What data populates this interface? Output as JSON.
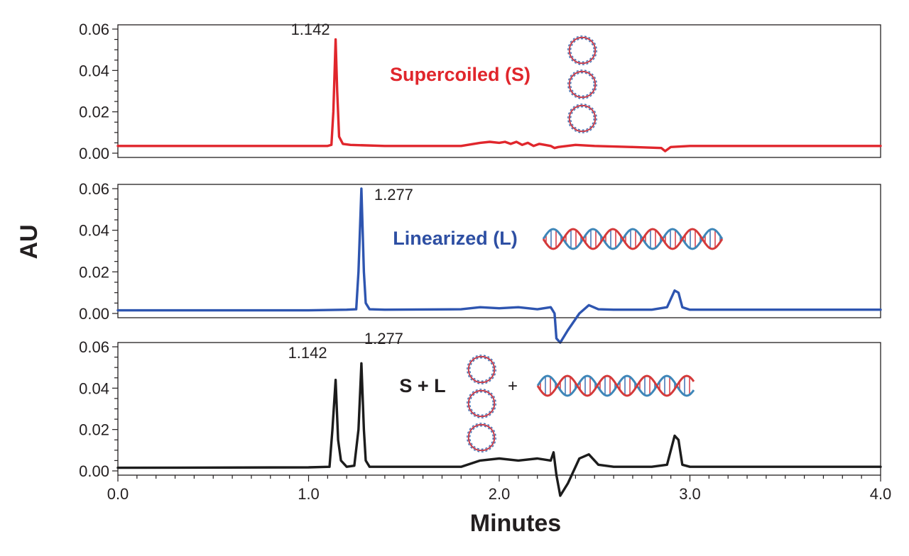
{
  "chart_data": {
    "type": "line",
    "xlabel": "Minutes",
    "ylabel": "AU",
    "xlim": [
      0.0,
      4.0
    ],
    "x_ticks": [
      "0.0",
      "1.0",
      "2.0",
      "3.0",
      "4.0"
    ],
    "ylim": [
      0.0,
      0.06
    ],
    "y_ticks": [
      "0.00",
      "0.02",
      "0.04",
      "0.06"
    ],
    "grid": false,
    "panels": [
      {
        "label": "Supercoiled (S)",
        "label_color": "#e0262c",
        "line_color": "#e0262c",
        "icon": "supercoiled-dna-icon",
        "peaks": [
          {
            "x": 1.142,
            "label": "1.142"
          }
        ],
        "series": {
          "x": [
            0.0,
            1.0,
            1.1,
            1.12,
            1.13,
            1.142,
            1.15,
            1.16,
            1.18,
            1.22,
            1.4,
            1.8,
            1.9,
            1.95,
            2.0,
            2.03,
            2.06,
            2.09,
            2.12,
            2.15,
            2.18,
            2.21,
            2.24,
            2.27,
            2.29,
            2.31,
            2.4,
            2.5,
            2.7,
            2.85,
            2.87,
            2.9,
            3.0,
            3.5,
            4.0
          ],
          "y": [
            0.0035,
            0.0035,
            0.0035,
            0.004,
            0.02,
            0.055,
            0.03,
            0.008,
            0.0045,
            0.004,
            0.0035,
            0.0035,
            0.005,
            0.0055,
            0.005,
            0.0055,
            0.0045,
            0.0055,
            0.004,
            0.005,
            0.0035,
            0.0045,
            0.004,
            0.0035,
            0.0025,
            0.003,
            0.004,
            0.0035,
            0.003,
            0.0025,
            0.001,
            0.003,
            0.0035,
            0.0035,
            0.0035
          ]
        }
      },
      {
        "label": "Linearized (L)",
        "label_color": "#2e4fa3",
        "line_color": "#2e55b0",
        "icon": "linear-dna-icon",
        "peaks": [
          {
            "x": 1.277,
            "label": "1.277"
          }
        ],
        "series": {
          "x": [
            0.0,
            1.0,
            1.2,
            1.25,
            1.262,
            1.277,
            1.29,
            1.3,
            1.32,
            1.4,
            1.8,
            1.9,
            2.0,
            2.1,
            2.2,
            2.27,
            2.29,
            2.3,
            2.32,
            2.36,
            2.42,
            2.47,
            2.52,
            2.6,
            2.8,
            2.88,
            2.92,
            2.94,
            2.96,
            3.0,
            3.5,
            4.0
          ],
          "y": [
            0.0015,
            0.0015,
            0.0018,
            0.002,
            0.02,
            0.06,
            0.02,
            0.005,
            0.002,
            0.0018,
            0.002,
            0.003,
            0.0025,
            0.003,
            0.002,
            0.003,
            0.0,
            -0.012,
            -0.014,
            -0.008,
            0.0,
            0.004,
            0.002,
            0.0018,
            0.0018,
            0.003,
            0.011,
            0.01,
            0.003,
            0.0018,
            0.0018,
            0.0018
          ]
        }
      },
      {
        "label": "S + L",
        "label_color": "#231f20",
        "line_color": "#1c1c1c",
        "icon": "supercoiled-plus-linear-dna-icon",
        "plus_label": "+",
        "peaks": [
          {
            "x": 1.142,
            "label": "1.142"
          },
          {
            "x": 1.277,
            "label": "1.277"
          }
        ],
        "series": {
          "x": [
            0.0,
            1.0,
            1.11,
            1.125,
            1.142,
            1.155,
            1.17,
            1.2,
            1.24,
            1.262,
            1.277,
            1.29,
            1.3,
            1.32,
            1.4,
            1.8,
            1.9,
            2.0,
            2.1,
            2.2,
            2.27,
            2.285,
            2.3,
            2.32,
            2.36,
            2.42,
            2.47,
            2.52,
            2.6,
            2.8,
            2.88,
            2.92,
            2.94,
            2.96,
            3.0,
            3.5,
            4.0
          ],
          "y": [
            0.0015,
            0.0017,
            0.002,
            0.02,
            0.044,
            0.015,
            0.005,
            0.002,
            0.0025,
            0.02,
            0.052,
            0.02,
            0.005,
            0.002,
            0.002,
            0.002,
            0.005,
            0.006,
            0.005,
            0.006,
            0.005,
            0.009,
            -0.002,
            -0.012,
            -0.006,
            0.006,
            0.008,
            0.003,
            0.002,
            0.002,
            0.003,
            0.017,
            0.015,
            0.003,
            0.002,
            0.002,
            0.002
          ]
        }
      }
    ]
  }
}
